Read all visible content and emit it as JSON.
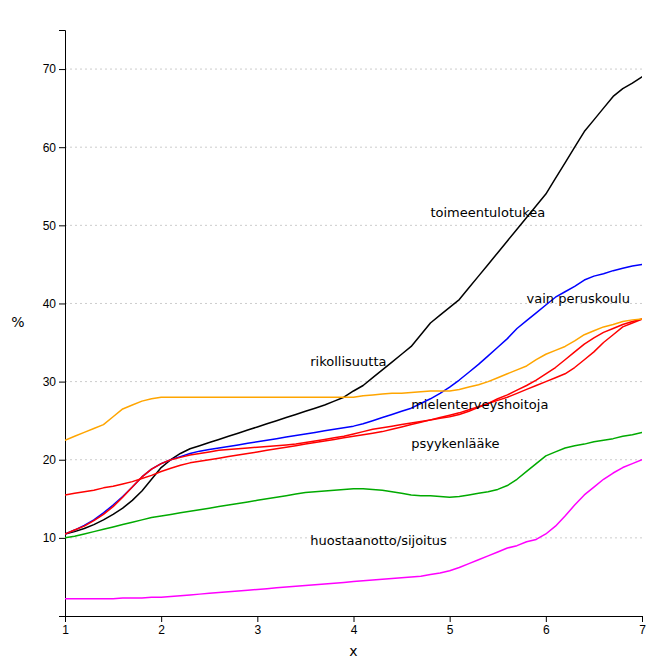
{
  "chart_data": {
    "type": "line",
    "xlabel": "x",
    "ylabel": "%",
    "xlim": [
      1,
      7
    ],
    "ylim": [
      0,
      75
    ],
    "xticks": [
      1,
      2,
      3,
      4,
      5,
      6,
      7
    ],
    "yticks": [
      10,
      20,
      30,
      40,
      50,
      60,
      70
    ],
    "grid": true,
    "x": [
      1.0,
      1.1,
      1.2,
      1.3,
      1.4,
      1.5,
      1.6,
      1.7,
      1.8,
      1.9,
      2.0,
      2.1,
      2.2,
      2.3,
      2.4,
      2.5,
      2.6,
      2.7,
      2.8,
      2.9,
      3.0,
      3.1,
      3.2,
      3.3,
      3.4,
      3.5,
      3.6,
      3.7,
      3.8,
      3.9,
      4.0,
      4.1,
      4.2,
      4.3,
      4.4,
      4.5,
      4.6,
      4.7,
      4.8,
      4.9,
      5.0,
      5.1,
      5.2,
      5.3,
      5.4,
      5.5,
      5.6,
      5.7,
      5.8,
      5.9,
      6.0,
      6.1,
      6.2,
      6.3,
      6.4,
      6.5,
      6.6,
      6.7,
      6.8,
      6.9,
      7.0
    ],
    "series": [
      {
        "color": "#000000",
        "values": [
          10.5,
          10.8,
          11.2,
          11.7,
          12.3,
          13.0,
          13.8,
          14.8,
          16.0,
          17.5,
          19.0,
          20.0,
          20.8,
          21.4,
          21.8,
          22.2,
          22.6,
          23.0,
          23.4,
          23.8,
          24.2,
          24.6,
          25.0,
          25.4,
          25.8,
          26.2,
          26.6,
          27.0,
          27.5,
          28.0,
          28.8,
          29.5,
          30.5,
          31.5,
          32.5,
          33.5,
          34.5,
          36.0,
          37.5,
          38.5,
          39.5,
          40.5,
          42.0,
          43.5,
          45.0,
          46.5,
          48.0,
          49.5,
          51.0,
          52.5,
          54.0,
          56.0,
          58.0,
          60.0,
          62.0,
          63.5,
          65.0,
          66.5,
          67.5,
          68.2,
          69.0
        ]
      },
      {
        "color": "#0000FF",
        "values": [
          10.5,
          11.0,
          11.6,
          12.3,
          13.2,
          14.2,
          15.3,
          16.5,
          17.8,
          18.8,
          19.5,
          20.0,
          20.4,
          20.8,
          21.1,
          21.3,
          21.5,
          21.7,
          21.9,
          22.1,
          22.3,
          22.5,
          22.7,
          22.9,
          23.1,
          23.3,
          23.5,
          23.7,
          23.9,
          24.1,
          24.3,
          24.6,
          25.0,
          25.4,
          25.8,
          26.2,
          26.6,
          27.2,
          27.8,
          28.5,
          29.3,
          30.2,
          31.2,
          32.2,
          33.3,
          34.4,
          35.5,
          36.8,
          37.8,
          38.8,
          39.8,
          40.8,
          41.5,
          42.2,
          43.0,
          43.5,
          43.8,
          44.2,
          44.5,
          44.8,
          45.0
        ]
      },
      {
        "color": "#FF0000",
        "values": [
          15.5,
          15.7,
          15.9,
          16.1,
          16.4,
          16.6,
          16.9,
          17.2,
          17.6,
          18.0,
          18.5,
          18.9,
          19.3,
          19.6,
          19.8,
          20.0,
          20.2,
          20.4,
          20.6,
          20.8,
          21.0,
          21.2,
          21.4,
          21.6,
          21.8,
          22.0,
          22.2,
          22.4,
          22.6,
          22.8,
          23.0,
          23.2,
          23.4,
          23.6,
          23.9,
          24.2,
          24.5,
          24.8,
          25.1,
          25.4,
          25.7,
          26.0,
          26.4,
          26.8,
          27.2,
          27.6,
          28.0,
          28.5,
          29.0,
          29.5,
          30.0,
          30.5,
          31.0,
          31.8,
          32.8,
          33.8,
          35.0,
          36.0,
          37.0,
          37.5,
          38.0
        ]
      },
      {
        "color": "#FF0000",
        "values": [
          10.5,
          11.0,
          11.5,
          12.2,
          13.0,
          14.0,
          15.2,
          16.5,
          17.8,
          18.8,
          19.5,
          20.0,
          20.3,
          20.6,
          20.8,
          21.0,
          21.2,
          21.3,
          21.4,
          21.5,
          21.6,
          21.7,
          21.8,
          21.9,
          22.0,
          22.2,
          22.4,
          22.6,
          22.8,
          23.0,
          23.3,
          23.6,
          23.9,
          24.1,
          24.3,
          24.5,
          24.7,
          24.9,
          25.1,
          25.3,
          25.5,
          25.8,
          26.2,
          26.7,
          27.2,
          27.8,
          28.3,
          28.9,
          29.5,
          30.2,
          31.0,
          31.8,
          32.8,
          33.8,
          34.8,
          35.6,
          36.3,
          36.8,
          37.3,
          37.7,
          38.0
        ]
      },
      {
        "color": "#00AA00",
        "values": [
          10.0,
          10.2,
          10.5,
          10.8,
          11.1,
          11.4,
          11.7,
          12.0,
          12.3,
          12.6,
          12.8,
          13.0,
          13.2,
          13.4,
          13.6,
          13.8,
          14.0,
          14.2,
          14.4,
          14.6,
          14.8,
          15.0,
          15.2,
          15.4,
          15.6,
          15.8,
          15.9,
          16.0,
          16.1,
          16.2,
          16.3,
          16.3,
          16.2,
          16.1,
          15.9,
          15.7,
          15.5,
          15.4,
          15.4,
          15.3,
          15.2,
          15.3,
          15.5,
          15.7,
          15.9,
          16.2,
          16.7,
          17.5,
          18.5,
          19.5,
          20.5,
          21.0,
          21.5,
          21.8,
          22.0,
          22.3,
          22.5,
          22.7,
          23.0,
          23.2,
          23.5
        ]
      },
      {
        "color": "#FF00FF",
        "values": [
          2.2,
          2.2,
          2.2,
          2.2,
          2.2,
          2.2,
          2.3,
          2.3,
          2.3,
          2.4,
          2.4,
          2.5,
          2.6,
          2.7,
          2.8,
          2.9,
          3.0,
          3.1,
          3.2,
          3.3,
          3.4,
          3.5,
          3.6,
          3.7,
          3.8,
          3.9,
          4.0,
          4.1,
          4.2,
          4.3,
          4.4,
          4.5,
          4.6,
          4.7,
          4.8,
          4.9,
          5.0,
          5.1,
          5.3,
          5.5,
          5.8,
          6.2,
          6.7,
          7.2,
          7.7,
          8.2,
          8.7,
          9.0,
          9.5,
          9.8,
          10.5,
          11.5,
          12.8,
          14.2,
          15.5,
          16.5,
          17.5,
          18.3,
          19.0,
          19.5,
          20.0
        ]
      },
      {
        "color": "#FFA500",
        "values": [
          22.5,
          23.0,
          23.5,
          24.0,
          24.5,
          25.5,
          26.5,
          27.0,
          27.5,
          27.8,
          28.0,
          28.0,
          28.0,
          28.0,
          28.0,
          28.0,
          28.0,
          28.0,
          28.0,
          28.0,
          28.0,
          28.0,
          28.0,
          28.0,
          28.0,
          28.0,
          28.0,
          28.0,
          28.0,
          28.0,
          28.0,
          28.2,
          28.3,
          28.4,
          28.5,
          28.5,
          28.6,
          28.7,
          28.8,
          28.8,
          28.8,
          29.0,
          29.3,
          29.6,
          30.0,
          30.5,
          31.0,
          31.5,
          32.0,
          32.8,
          33.5,
          34.0,
          34.5,
          35.2,
          36.0,
          36.5,
          37.0,
          37.3,
          37.7,
          37.9,
          38.0
        ]
      }
    ],
    "annotations": [
      {
        "x": 4.8,
        "y": 51.5,
        "text": "toimeentulotukea"
      },
      {
        "x": 5.8,
        "y": 40.5,
        "text": "vain peruskoulu"
      },
      {
        "x": 3.55,
        "y": 32.5,
        "text": "rikollisuutta"
      },
      {
        "x": 4.6,
        "y": 27.0,
        "text": "mielenterveyshoitoja"
      },
      {
        "x": 4.6,
        "y": 22.0,
        "text": "psyykenlääke"
      },
      {
        "x": 3.55,
        "y": 9.5,
        "text": "huostaanotto/sijoitus"
      }
    ]
  }
}
